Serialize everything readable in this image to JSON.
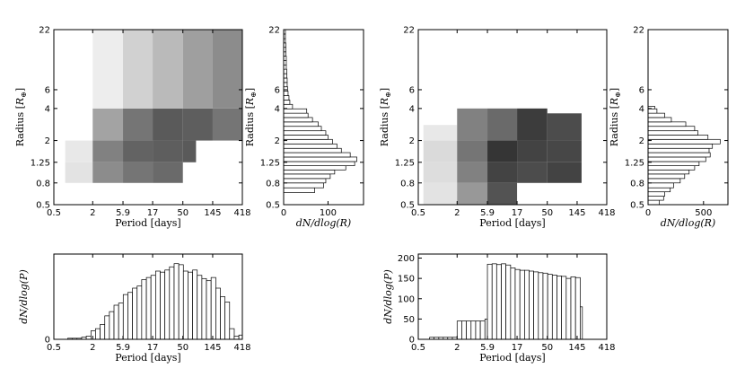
{
  "figure": {
    "labels": {
      "period": "Period [days]",
      "radius": "Radius [",
      "radius_unit": "R",
      "radius_sub": "⊕",
      "radius_close": "]",
      "dndlogR": "dN/dlog(R)",
      "dndlogP": "dN/dlog(P)"
    }
  },
  "chart_data": [
    {
      "id": "left-heatmap",
      "type": "heatmap",
      "xlabel": "Period [days]",
      "ylabel": "Radius [R⊕]",
      "xticks": [
        0.5,
        2,
        5.9,
        17,
        50,
        145,
        418
      ],
      "xtick_labels": [
        "0.5",
        "2",
        "5.9",
        "17",
        "50",
        "145",
        "418"
      ],
      "yticks": [
        0.5,
        0.8,
        1.25,
        2,
        4,
        6,
        22
      ],
      "ytick_labels": [
        "0.5",
        "0.8",
        "1.25",
        "2",
        "4",
        "6",
        "22"
      ],
      "xlim": [
        0.5,
        418
      ],
      "ylim": [
        0.5,
        22
      ],
      "cells": [
        {
          "x": [
            0.75,
            2
          ],
          "y": [
            0.8,
            1.25
          ],
          "v": 0.12
        },
        {
          "x": [
            0.75,
            2
          ],
          "y": [
            1.25,
            2
          ],
          "v": 0.1
        },
        {
          "x": [
            2,
            5.9
          ],
          "y": [
            0.8,
            1.25
          ],
          "v": 0.5
        },
        {
          "x": [
            2,
            5.9
          ],
          "y": [
            1.25,
            2
          ],
          "v": 0.55
        },
        {
          "x": [
            2,
            5.9
          ],
          "y": [
            2,
            4
          ],
          "v": 0.4
        },
        {
          "x": [
            2,
            5.9
          ],
          "y": [
            4,
            22
          ],
          "v": 0.08
        },
        {
          "x": [
            5.9,
            17
          ],
          "y": [
            0.8,
            1.25
          ],
          "v": 0.6
        },
        {
          "x": [
            5.9,
            17
          ],
          "y": [
            1.25,
            2
          ],
          "v": 0.68
        },
        {
          "x": [
            5.9,
            17
          ],
          "y": [
            2,
            4
          ],
          "v": 0.6
        },
        {
          "x": [
            5.9,
            17
          ],
          "y": [
            4,
            22
          ],
          "v": 0.2
        },
        {
          "x": [
            17,
            50
          ],
          "y": [
            0.8,
            1.25
          ],
          "v": 0.65
        },
        {
          "x": [
            17,
            50
          ],
          "y": [
            1.25,
            2
          ],
          "v": 0.7
        },
        {
          "x": [
            17,
            50
          ],
          "y": [
            2,
            4
          ],
          "v": 0.72
        },
        {
          "x": [
            17,
            50
          ],
          "y": [
            4,
            22
          ],
          "v": 0.3
        },
        {
          "x": [
            50,
            80
          ],
          "y": [
            1.25,
            2
          ],
          "v": 0.72
        },
        {
          "x": [
            50,
            145
          ],
          "y": [
            2,
            4
          ],
          "v": 0.7
        },
        {
          "x": [
            50,
            145
          ],
          "y": [
            4,
            22
          ],
          "v": 0.42
        },
        {
          "x": [
            145,
            418
          ],
          "y": [
            2,
            4
          ],
          "v": 0.6
        },
        {
          "x": [
            145,
            418
          ],
          "y": [
            4,
            22
          ],
          "v": 0.5
        }
      ]
    },
    {
      "id": "left-radius-hist",
      "type": "bar",
      "orientation": "horizontal",
      "xlabel": "dN/dlog(R)",
      "ylabel": "Radius [R⊕]",
      "xticks": [
        0,
        100
      ],
      "xlim": [
        0,
        180
      ],
      "ylim": [
        0.5,
        22
      ],
      "bin_edges": [
        0.65,
        0.72,
        0.8,
        0.88,
        0.97,
        1.06,
        1.16,
        1.27,
        1.4,
        1.54,
        1.69,
        1.86,
        2.05,
        2.25,
        2.47,
        2.72,
        2.99,
        3.29,
        3.61,
        3.97,
        4.37,
        4.8,
        5.28,
        5.81,
        6.39,
        7.02,
        7.72,
        8.49,
        9.34,
        10.27,
        11.3,
        12.4,
        13.6,
        15.0,
        16.5,
        18.1,
        20.0,
        22.0
      ],
      "values": [
        70,
        90,
        95,
        105,
        115,
        140,
        160,
        165,
        150,
        130,
        120,
        110,
        100,
        95,
        85,
        78,
        65,
        55,
        52,
        20,
        14,
        12,
        10,
        9,
        8,
        8,
        7,
        7,
        6,
        6,
        6,
        5,
        5,
        5,
        4,
        4,
        4
      ]
    },
    {
      "id": "left-period-hist",
      "type": "bar",
      "xlabel": "Period [days]",
      "ylabel": "dN/dlog(P)",
      "xticks": [
        0.5,
        2,
        5.9,
        17,
        50,
        145,
        418
      ],
      "xlim": [
        0.5,
        418
      ],
      "ylim": [
        0,
        80
      ],
      "bin_edges": [
        0.5,
        0.59,
        0.7,
        0.82,
        0.97,
        1.14,
        1.35,
        1.59,
        1.88,
        2.21,
        2.61,
        3.08,
        3.63,
        4.28,
        5.05,
        5.95,
        7.02,
        8.28,
        9.77,
        11.5,
        13.6,
        16.0,
        18.9,
        22.3,
        26.3,
        31.0,
        36.6,
        43.2,
        50.9,
        60.0,
        70.8,
        83.5,
        98.5,
        116,
        137,
        162,
        191,
        225,
        265,
        313,
        369,
        418
      ],
      "values": [
        0,
        0,
        0,
        1,
        1,
        1,
        2,
        3,
        8,
        10,
        14,
        22,
        26,
        32,
        34,
        42,
        44,
        48,
        50,
        56,
        58,
        60,
        64,
        63,
        65,
        68,
        71,
        70,
        64,
        63,
        65,
        60,
        57,
        55,
        58,
        48,
        40,
        35,
        10,
        3,
        4
      ]
    },
    {
      "id": "right-heatmap",
      "type": "heatmap",
      "xlabel": "Period [days]",
      "ylabel": "Radius [R⊕]",
      "xticks": [
        0.5,
        2,
        5.9,
        17,
        50,
        145,
        418
      ],
      "xtick_labels": [
        "0.5",
        "2",
        "5.9",
        "17",
        "50",
        "145",
        "418"
      ],
      "yticks": [
        0.5,
        0.8,
        1.25,
        2,
        4,
        6,
        22
      ],
      "ytick_labels": [
        "0.5",
        "0.8",
        "1.25",
        "2",
        "4",
        "6",
        "22"
      ],
      "xlim": [
        0.5,
        418
      ],
      "ylim": [
        0.5,
        22
      ],
      "cells": [
        {
          "x": [
            0.6,
            2
          ],
          "y": [
            0.5,
            0.8
          ],
          "v": 0.12
        },
        {
          "x": [
            0.6,
            2
          ],
          "y": [
            0.8,
            1.25
          ],
          "v": 0.15
        },
        {
          "x": [
            0.6,
            2
          ],
          "y": [
            1.25,
            2
          ],
          "v": 0.16
        },
        {
          "x": [
            0.6,
            2
          ],
          "y": [
            2,
            2.8
          ],
          "v": 0.1
        },
        {
          "x": [
            2,
            5.9
          ],
          "y": [
            0.5,
            0.8
          ],
          "v": 0.45
        },
        {
          "x": [
            2,
            5.9
          ],
          "y": [
            0.8,
            1.25
          ],
          "v": 0.55
        },
        {
          "x": [
            2,
            5.9
          ],
          "y": [
            1.25,
            2
          ],
          "v": 0.6
        },
        {
          "x": [
            2,
            5.9
          ],
          "y": [
            2,
            4
          ],
          "v": 0.55
        },
        {
          "x": [
            5.9,
            17
          ],
          "y": [
            0.5,
            0.8
          ],
          "v": 0.75
        },
        {
          "x": [
            5.9,
            17
          ],
          "y": [
            0.8,
            1.25
          ],
          "v": 0.82
        },
        {
          "x": [
            5.9,
            17
          ],
          "y": [
            1.25,
            2
          ],
          "v": 0.88
        },
        {
          "x": [
            5.9,
            17
          ],
          "y": [
            2,
            4
          ],
          "v": 0.65
        },
        {
          "x": [
            17,
            50
          ],
          "y": [
            0.8,
            1.25
          ],
          "v": 0.78
        },
        {
          "x": [
            17,
            50
          ],
          "y": [
            1.25,
            2
          ],
          "v": 0.82
        },
        {
          "x": [
            17,
            50
          ],
          "y": [
            2,
            4
          ],
          "v": 0.85
        },
        {
          "x": [
            50,
            170
          ],
          "y": [
            0.8,
            1.25
          ],
          "v": 0.82
        },
        {
          "x": [
            50,
            170
          ],
          "y": [
            1.25,
            2
          ],
          "v": 0.8
        },
        {
          "x": [
            50,
            170
          ],
          "y": [
            2,
            3.6
          ],
          "v": 0.78
        }
      ]
    },
    {
      "id": "right-radius-hist",
      "type": "bar",
      "orientation": "horizontal",
      "xlabel": "dN/dlog(R)",
      "ylabel": "Radius [R⊕]",
      "xticks": [
        0,
        500
      ],
      "xlim": [
        0,
        720
      ],
      "ylim": [
        0.5,
        22
      ],
      "bin_edges": [
        0.5,
        0.55,
        0.6,
        0.66,
        0.72,
        0.8,
        0.88,
        0.97,
        1.06,
        1.16,
        1.27,
        1.4,
        1.54,
        1.69,
        1.86,
        2.05,
        2.25,
        2.47,
        2.72,
        2.99,
        3.29,
        3.61,
        3.97,
        4.2
      ],
      "values": [
        100,
        140,
        150,
        200,
        230,
        290,
        330,
        370,
        420,
        460,
        520,
        560,
        550,
        580,
        650,
        540,
        450,
        420,
        340,
        210,
        150,
        80,
        60
      ]
    },
    {
      "id": "right-period-hist",
      "type": "bar",
      "xlabel": "Period [days]",
      "ylabel": "dN/dlog(P)",
      "xticks": [
        0.5,
        2,
        5.9,
        17,
        50,
        145,
        418
      ],
      "yticks": [
        0,
        50,
        100,
        150,
        200
      ],
      "xlim": [
        0.5,
        418
      ],
      "ylim": [
        0,
        210
      ],
      "bin_edges": [
        0.75,
        0.88,
        1.04,
        1.22,
        1.43,
        1.69,
        2.0,
        2.36,
        2.79,
        3.29,
        3.88,
        4.58,
        5.4,
        5.9,
        6.97,
        8.2,
        9.7,
        11.4,
        13.5,
        15.9,
        18.8,
        22.2,
        26.1,
        30.8,
        36.4,
        42.9,
        50.7,
        59.8,
        70.6,
        83.3,
        98.3,
        116,
        137,
        162,
        175
      ],
      "values": [
        5,
        5,
        5,
        5,
        5,
        5,
        45,
        45,
        45,
        45,
        45,
        45,
        50,
        185,
        186,
        184,
        186,
        183,
        176,
        172,
        170,
        170,
        168,
        166,
        164,
        163,
        160,
        158,
        156,
        155,
        150,
        154,
        152,
        80
      ]
    }
  ]
}
